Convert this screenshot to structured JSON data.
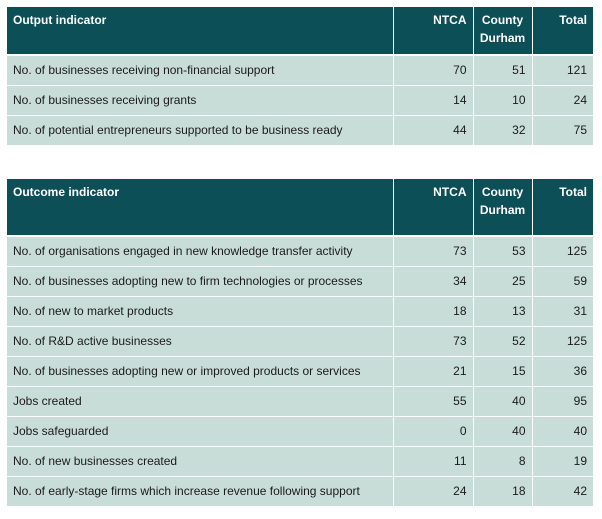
{
  "output_table": {
    "headers": {
      "indicator": "Output indicator",
      "ntca": "NTCA",
      "county_durham": "County Durham",
      "total": "Total"
    },
    "rows": [
      {
        "indicator": "No. of businesses receiving non-financial support",
        "ntca": "70",
        "county_durham": "51",
        "total": "121"
      },
      {
        "indicator": "No. of businesses receiving grants",
        "ntca": "14",
        "county_durham": "10",
        "total": "24"
      },
      {
        "indicator": "No. of potential entrepreneurs supported to be business ready",
        "ntca": "44",
        "county_durham": "32",
        "total": "75"
      }
    ]
  },
  "outcome_table": {
    "headers": {
      "indicator": "Outcome indicator",
      "ntca": "NTCA",
      "county_durham": "County Durham",
      "total": "Total"
    },
    "rows": [
      {
        "indicator": "No. of organisations engaged in new knowledge transfer activity",
        "ntca": "73",
        "county_durham": "53",
        "total": "125"
      },
      {
        "indicator": "No. of businesses adopting new to firm technologies or processes",
        "ntca": "34",
        "county_durham": "25",
        "total": "59"
      },
      {
        "indicator": "No. of new to market products",
        "ntca": "18",
        "county_durham": "13",
        "total": "31"
      },
      {
        "indicator": "No. of R&D active businesses",
        "ntca": "73",
        "county_durham": "52",
        "total": "125"
      },
      {
        "indicator": "No. of businesses adopting new or improved products or services",
        "ntca": "21",
        "county_durham": "15",
        "total": "36"
      },
      {
        "indicator": "Jobs created",
        "ntca": "55",
        "county_durham": "40",
        "total": "95"
      },
      {
        "indicator": "Jobs safeguarded",
        "ntca": "0",
        "county_durham": "40",
        "total": "40"
      },
      {
        "indicator": "No. of new businesses created",
        "ntca": "11",
        "county_durham": "8",
        "total": "19"
      },
      {
        "indicator": "No. of early-stage firms which increase revenue following support",
        "ntca": "24",
        "county_durham": "18",
        "total": "42"
      }
    ]
  },
  "colors": {
    "header_bg": "#0c4f57",
    "header_text": "#ffffff",
    "cell_bg": "#c9ddd8"
  }
}
